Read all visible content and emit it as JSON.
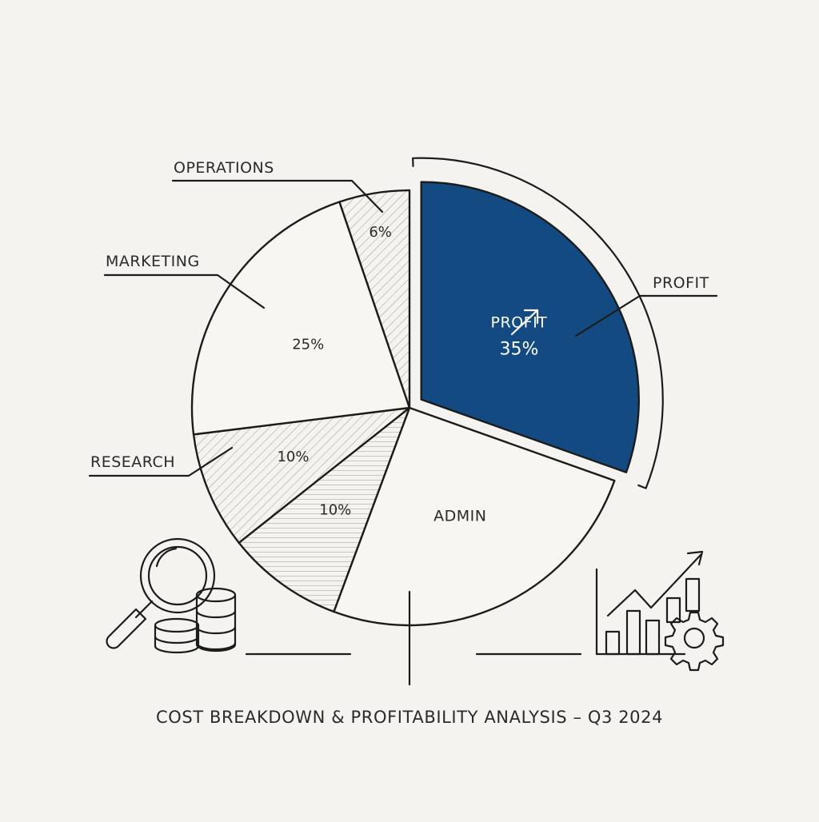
{
  "chart_data": {
    "type": "pie",
    "title": "COST BREAKDOWN & PROFITABILITY ANALYSIS – Q3 2024",
    "slices": [
      {
        "label": "PROFIT",
        "value": 35,
        "value_label": "35%",
        "inner_label": "PROFIT",
        "highlight": true,
        "color": "#144a82"
      },
      {
        "label": "ADMIN",
        "value": 29,
        "value_label": "",
        "inner_label": "ADMIN",
        "highlight": false,
        "color": "#f7f6f1"
      },
      {
        "label": "",
        "value": 10,
        "value_label": "10%",
        "inner_label": "",
        "highlight": false,
        "color": "#f4f3ee",
        "pattern": "horizontal"
      },
      {
        "label": "RESEARCH",
        "value": 10,
        "value_label": "10%",
        "inner_label": "",
        "highlight": false,
        "color": "#f4f3ee",
        "pattern": "diagonal"
      },
      {
        "label": "MARKETING",
        "value": 25,
        "value_label": "25%",
        "inner_label": "",
        "highlight": false,
        "color": "#f7f6f1"
      },
      {
        "label": "OPERATIONS",
        "value": 6,
        "value_label": "6%",
        "inner_label": "",
        "highlight": false,
        "color": "#f4f3ee",
        "pattern": "diagonal"
      }
    ],
    "legend": "callout labels"
  },
  "icons": {
    "left": "magnifier-over-coins-icon",
    "right": "growth-chart-with-gear-icon"
  },
  "colors": {
    "profit": "#144a82",
    "ink": "#1c1c1c",
    "background": "#f4f3ef"
  }
}
